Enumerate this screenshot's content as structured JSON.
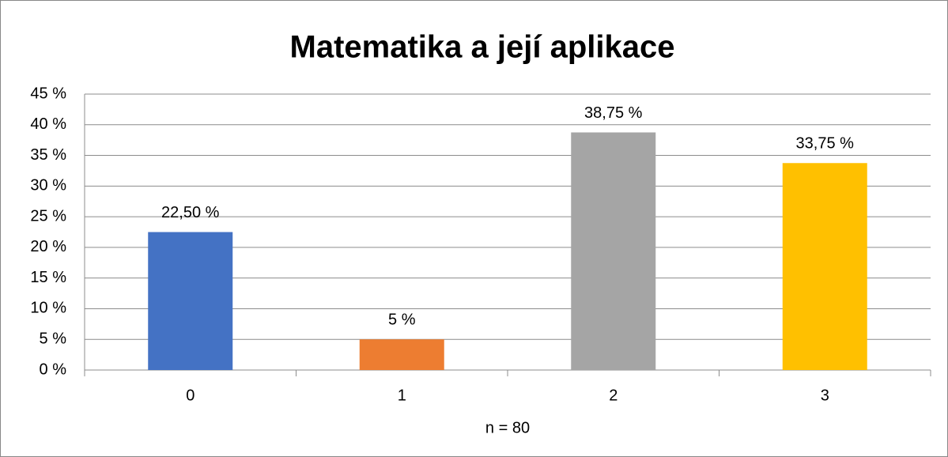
{
  "chart_data": {
    "type": "bar",
    "title": "Matematika a její aplikace",
    "x_label": "n = 80",
    "categories": [
      "0",
      "1",
      "2",
      "3"
    ],
    "values": [
      22.5,
      5,
      38.75,
      33.75
    ],
    "value_labels": [
      "22,50 %",
      "5 %",
      "38,75 %",
      "33,75 %"
    ],
    "colors": [
      "#4472c4",
      "#ed7d31",
      "#a5a5a5",
      "#ffc000"
    ],
    "ylim": [
      0,
      45
    ],
    "yticks": [
      {
        "value": 0,
        "label": "0 %"
      },
      {
        "value": 5,
        "label": "5 %"
      },
      {
        "value": 10,
        "label": "10 %"
      },
      {
        "value": 15,
        "label": "15 %"
      },
      {
        "value": 20,
        "label": "20 %"
      },
      {
        "value": 25,
        "label": "25 %"
      },
      {
        "value": 30,
        "label": "30 %"
      },
      {
        "value": 35,
        "label": "35 %"
      },
      {
        "value": 40,
        "label": "40 %"
      },
      {
        "value": 45,
        "label": "45 %"
      }
    ],
    "grid": true
  }
}
